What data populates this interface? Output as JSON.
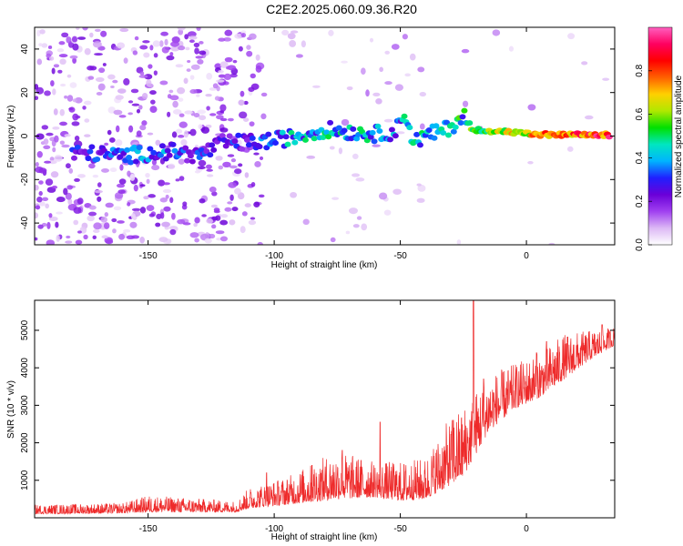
{
  "title": "C2E2.2025.060.09.36.R20",
  "chart_data": [
    {
      "type": "heatmap",
      "xlabel": "Height of straight line (km)",
      "ylabel": "Frequency (Hz)",
      "xlim": [
        -195,
        35
      ],
      "ylim": [
        -50,
        50
      ],
      "xticks": [
        -150,
        -100,
        -50,
        0
      ],
      "yticks": [
        -40,
        -20,
        0,
        20,
        40
      ],
      "colorbar": {
        "label": "Normalized spectral amplitude",
        "range": [
          0,
          1
        ],
        "ticks": [
          0.0,
          0.2,
          0.4,
          0.6,
          0.8
        ],
        "colors": [
          "#ffffff",
          "#dcb8f5",
          "#a040f0",
          "#6a00d8",
          "#2020ff",
          "#00b4ff",
          "#00e6c0",
          "#00e000",
          "#b0e800",
          "#ffd000",
          "#ff6000",
          "#ff0000",
          "#ff0060",
          "#ff60c0"
        ]
      },
      "ridge": [
        {
          "x": -175,
          "f": -8,
          "a": 0.3
        },
        {
          "x": -160,
          "f": -9,
          "a": 0.35
        },
        {
          "x": -150,
          "f": -8,
          "a": 0.4
        },
        {
          "x": -140,
          "f": -7,
          "a": 0.35
        },
        {
          "x": -130,
          "f": -9,
          "a": 0.3
        },
        {
          "x": -120,
          "f": -3,
          "a": 0.3
        },
        {
          "x": -110,
          "f": -3,
          "a": 0.3
        },
        {
          "x": -100,
          "f": -2,
          "a": 0.4
        },
        {
          "x": -90,
          "f": 0,
          "a": 0.45
        },
        {
          "x": -80,
          "f": 3,
          "a": 0.45
        },
        {
          "x": -70,
          "f": 2,
          "a": 0.45
        },
        {
          "x": -60,
          "f": 1,
          "a": 0.45
        },
        {
          "x": -52,
          "f": 2,
          "a": 0.4
        },
        {
          "x": -48,
          "f": 11,
          "a": 0.45
        },
        {
          "x": -45,
          "f": -3,
          "a": 0.45
        },
        {
          "x": -40,
          "f": 0,
          "a": 0.45
        },
        {
          "x": -30,
          "f": 4,
          "a": 0.5
        },
        {
          "x": -25,
          "f": 10,
          "a": 0.5
        },
        {
          "x": -22,
          "f": 3,
          "a": 0.6
        },
        {
          "x": -10,
          "f": 2,
          "a": 0.7
        },
        {
          "x": 0,
          "f": 1,
          "a": 0.75
        },
        {
          "x": 10,
          "f": 0.5,
          "a": 0.85
        },
        {
          "x": 20,
          "f": 0.5,
          "a": 0.9
        },
        {
          "x": 33,
          "f": 0.5,
          "a": 0.95
        }
      ]
    },
    {
      "type": "line",
      "xlabel": "Height of straight line (km)",
      "ylabel": "SNR (10 * v/v)",
      "xlim": [
        -195,
        35
      ],
      "ylim": [
        0,
        5800
      ],
      "xticks": [
        -150,
        -100,
        -50,
        0
      ],
      "yticks": [
        1000,
        2000,
        3000,
        4000,
        5000
      ],
      "color": "#ee2a2a",
      "envelope": [
        {
          "x": -195,
          "base": 100,
          "peak": 350
        },
        {
          "x": -160,
          "base": 120,
          "peak": 400
        },
        {
          "x": -150,
          "base": 150,
          "peak": 600
        },
        {
          "x": -115,
          "base": 150,
          "peak": 450
        },
        {
          "x": -110,
          "base": 250,
          "peak": 800
        },
        {
          "x": -95,
          "base": 350,
          "peak": 1100
        },
        {
          "x": -75,
          "base": 500,
          "peak": 1800
        },
        {
          "x": -60,
          "base": 550,
          "peak": 1500
        },
        {
          "x": -50,
          "base": 450,
          "peak": 1500
        },
        {
          "x": -40,
          "base": 500,
          "peak": 1600
        },
        {
          "x": -32,
          "base": 800,
          "peak": 2500
        },
        {
          "x": -25,
          "base": 1100,
          "peak": 3000
        },
        {
          "x": -15,
          "base": 2300,
          "peak": 3800
        },
        {
          "x": -5,
          "base": 2900,
          "peak": 4100
        },
        {
          "x": 5,
          "base": 3200,
          "peak": 4400
        },
        {
          "x": 15,
          "base": 3700,
          "peak": 4900
        },
        {
          "x": 25,
          "base": 4200,
          "peak": 5000
        },
        {
          "x": 35,
          "base": 4600,
          "peak": 5100
        }
      ],
      "spikes": [
        {
          "x": -103,
          "y": 1200
        },
        {
          "x": -85,
          "y": 1400
        },
        {
          "x": -73,
          "y": 1800
        },
        {
          "x": -58,
          "y": 2550
        },
        {
          "x": -29,
          "y": 2600
        },
        {
          "x": -21,
          "y": 5800
        },
        {
          "x": -17,
          "y": 3700
        },
        {
          "x": 4,
          "y": 4400
        },
        {
          "x": 8,
          "y": 4700
        },
        {
          "x": 30,
          "y": 5150
        }
      ]
    }
  ]
}
